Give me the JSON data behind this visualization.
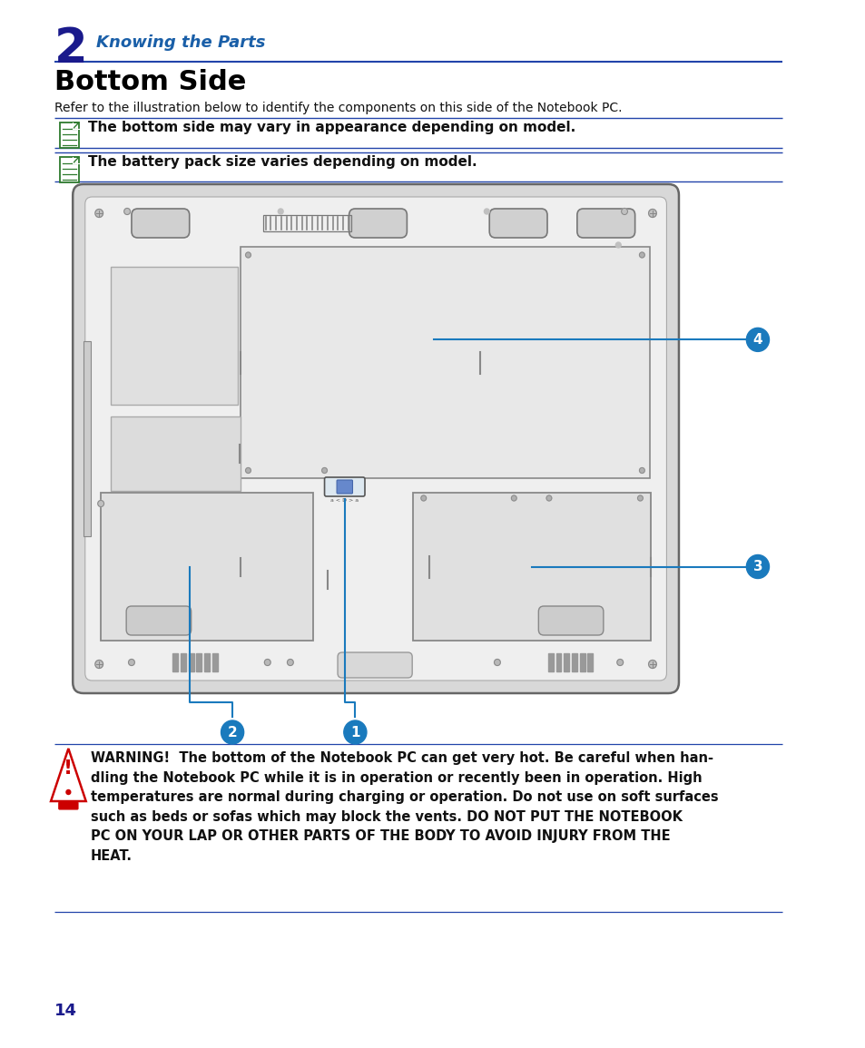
{
  "bg_color": "#ffffff",
  "chapter_num": "2",
  "chapter_num_color": "#1a1a8c",
  "chapter_title": "Knowing the Parts",
  "chapter_title_color": "#1a5fa8",
  "section_title": "Bottom Side",
  "intro_text": "Refer to the illustration below to identify the components on this side of the Notebook PC.",
  "note1_text": "The bottom side may vary in appearance depending on model.",
  "note2_text": "The battery pack size varies depending on model.",
  "divider_color": "#2244aa",
  "warning_text": "WARNING!  The bottom of the Notebook PC can get very hot. Be careful when han-\ndling the Notebook PC while it is in operation or recently been in operation. High\ntemperatures are normal during charging or operation. Do not use on soft surfaces\nsuch as beds or sofas which may block the vents. DO NOT PUT THE NOTEBOOK\nPC ON YOUR LAP OR OTHER PARTS OF THE BODY TO AVOID INJURY FROM THE\nHEAT.",
  "page_num": "14",
  "page_num_color": "#1a1a8c",
  "callout_color": "#1a7abd",
  "note_icon_color": "#2d7a2d",
  "chassis_outer_color": "#c8c8c8",
  "chassis_inner_color": "#e8e8e8",
  "panel_color": "#e2e2e2",
  "panel_dark_color": "#d0d0d0",
  "screw_color": "#aaaaaa",
  "line_color": "#666666"
}
